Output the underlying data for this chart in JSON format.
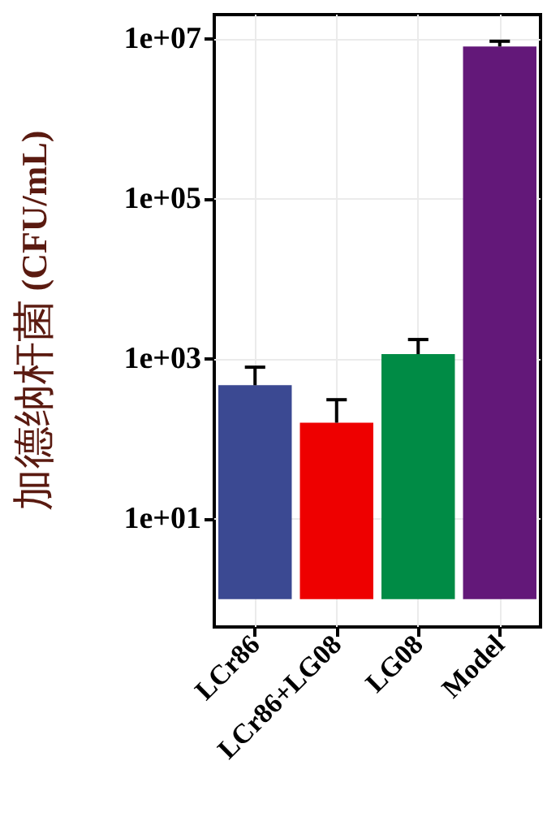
{
  "chart_data": {
    "type": "bar",
    "ylabel": "加德纳杆菌 (CFU/mL)",
    "categories": [
      "LCr86",
      "LCr86+LG08",
      "LG08",
      "Model"
    ],
    "base": [
      1,
      1,
      1,
      1
    ],
    "values": [
      469,
      159,
      1149,
      7999999
    ],
    "colors": [
      "#3b4992",
      "#ee0000",
      "#008b45",
      "#631879"
    ],
    "errors": [
      [
        470,
        790
      ],
      [
        160,
        310
      ],
      [
        1150,
        1750
      ],
      [
        8000000,
        9300000
      ]
    ],
    "log": "y",
    "ylim": [
      0.45,
      20000000
    ],
    "yticks": [
      {
        "value": 10,
        "label": "1e+01"
      },
      {
        "value": 1000,
        "label": "1e+03"
      },
      {
        "value": 100000,
        "label": "1e+05"
      },
      {
        "value": 10000000,
        "label": "1e+07"
      }
    ],
    "grid": true
  }
}
